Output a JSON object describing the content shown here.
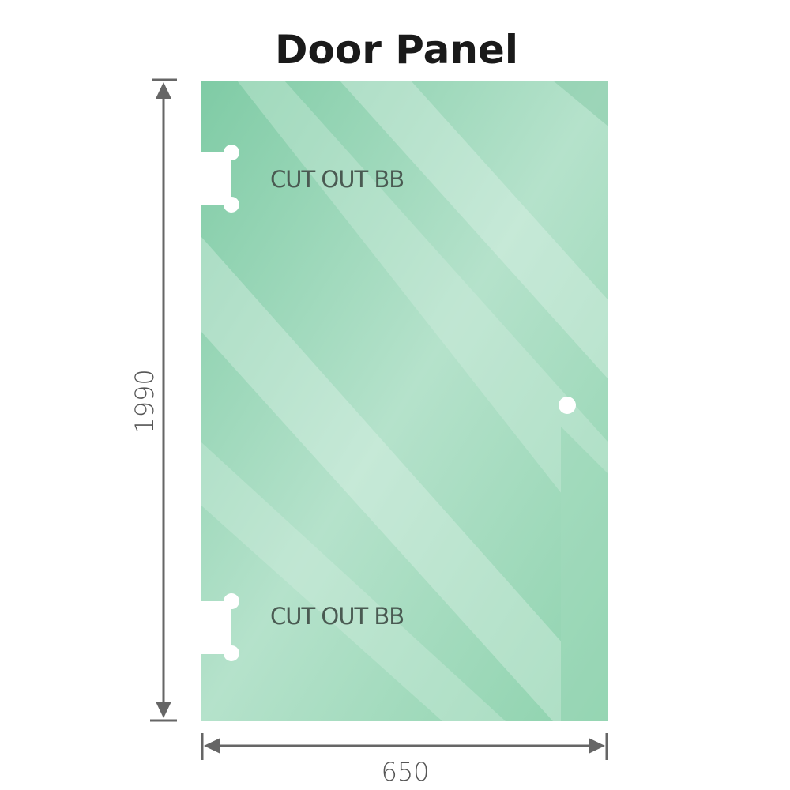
{
  "title": "Door Panel",
  "panel": {
    "cutout_label_top": "CUT OUT BB",
    "cutout_label_bottom": "CUT OUT BB",
    "glass_color": "#86cfaa",
    "glass_highlight": "#bfe6d2"
  },
  "dimensions": {
    "height": "1990",
    "width": "650",
    "line_color": "#666666"
  }
}
